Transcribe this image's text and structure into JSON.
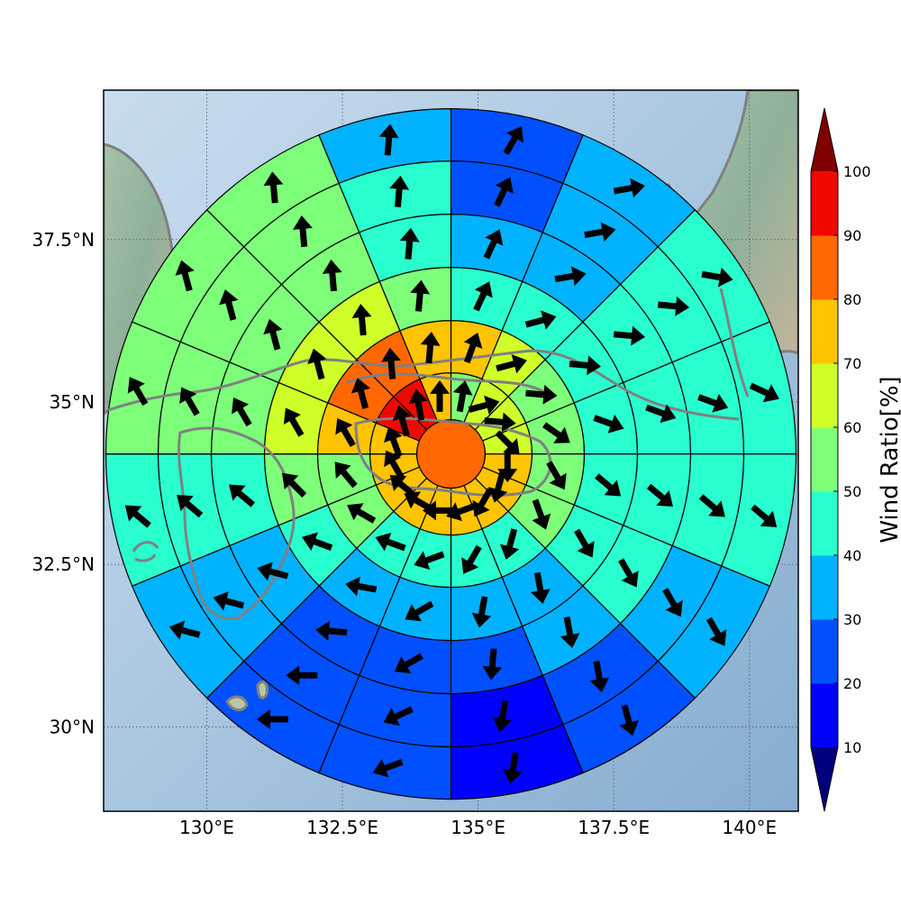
{
  "map": {
    "lon_range": [
      128.1,
      140.9
    ],
    "lat_range": [
      28.7,
      39.8
    ],
    "lon_ticks": [
      {
        "value": 130.0,
        "label": "130°E"
      },
      {
        "value": 132.5,
        "label": "132.5°E"
      },
      {
        "value": 135.0,
        "label": "135°E"
      },
      {
        "value": 137.5,
        "label": "137.5°E"
      },
      {
        "value": 140.0,
        "label": "140°E"
      }
    ],
    "lat_ticks": [
      {
        "value": 37.5,
        "label": "37.5°N"
      },
      {
        "value": 35.0,
        "label": "35°N"
      },
      {
        "value": 32.5,
        "label": "32.5°N"
      },
      {
        "value": 30.0,
        "label": "30°N"
      }
    ],
    "grid": "dotted",
    "coastline_color": "#808080",
    "land_color": "#8fb09a",
    "sea_color": "#a9c6e0"
  },
  "chart_data": {
    "type": "polar-sector-map",
    "center": {
      "lon": 134.5,
      "lat": 34.2
    },
    "ring_count": 6,
    "sector_count": 16,
    "start_bearing_deg": 0,
    "values_by_ring": [
      [
        85
      ],
      [
        55,
        65,
        65,
        65,
        75,
        75,
        75,
        75,
        75,
        75,
        75,
        75,
        75,
        90,
        90,
        75
      ],
      [
        75,
        65,
        55,
        55,
        55,
        55,
        45,
        45,
        45,
        45,
        55,
        55,
        75,
        85,
        85,
        75
      ],
      [
        45,
        45,
        45,
        45,
        45,
        45,
        35,
        35,
        35,
        35,
        45,
        55,
        65,
        65,
        65,
        55
      ],
      [
        35,
        35,
        45,
        45,
        45,
        45,
        35,
        25,
        25,
        25,
        35,
        45,
        55,
        55,
        55,
        45
      ],
      [
        25,
        35,
        45,
        45,
        45,
        35,
        25,
        15,
        25,
        25,
        35,
        45,
        55,
        55,
        55,
        45
      ],
      [
        25,
        35,
        45,
        45,
        45,
        35,
        25,
        15,
        25,
        25,
        35,
        45,
        55,
        55,
        55,
        35
      ]
    ],
    "wind_direction_by_ring": [
      [],
      [
        10,
        75,
        95,
        135,
        180,
        195,
        210,
        250,
        270,
        300,
        310,
        330,
        340,
        345,
        350,
        0
      ],
      [
        20,
        75,
        95,
        125,
        150,
        160,
        195,
        210,
        250,
        290,
        300,
        320,
        330,
        345,
        355,
        5
      ],
      [
        25,
        75,
        95,
        110,
        130,
        150,
        170,
        190,
        240,
        280,
        290,
        315,
        330,
        345,
        355,
        5
      ],
      [
        25,
        80,
        95,
        110,
        130,
        150,
        170,
        185,
        240,
        275,
        285,
        310,
        330,
        345,
        355,
        5
      ],
      [
        25,
        80,
        95,
        110,
        130,
        150,
        170,
        190,
        245,
        270,
        285,
        310,
        330,
        345,
        355,
        5
      ],
      [
        30,
        80,
        100,
        115,
        130,
        150,
        165,
        190,
        250,
        270,
        285,
        310,
        330,
        345,
        355,
        5
      ]
    ],
    "colorbar": {
      "label": "Wind Ratio[%]",
      "ticks": [
        "10",
        "20",
        "30",
        "40",
        "50",
        "60",
        "70",
        "80",
        "90",
        "100"
      ],
      "bins": [
        {
          "min": 10,
          "max": 20,
          "color": "#0000ff"
        },
        {
          "min": 20,
          "max": 30,
          "color": "#0050ff"
        },
        {
          "min": 30,
          "max": 40,
          "color": "#00b2ff"
        },
        {
          "min": 40,
          "max": 50,
          "color": "#29ffce"
        },
        {
          "min": 50,
          "max": 60,
          "color": "#7dff7a"
        },
        {
          "min": 60,
          "max": 70,
          "color": "#ceff29"
        },
        {
          "min": 70,
          "max": 80,
          "color": "#ffc400"
        },
        {
          "min": 80,
          "max": 90,
          "color": "#ff6800"
        },
        {
          "min": 90,
          "max": 100,
          "color": "#f10800"
        }
      ],
      "under_color": "#00007f",
      "over_color": "#7f0000"
    }
  }
}
